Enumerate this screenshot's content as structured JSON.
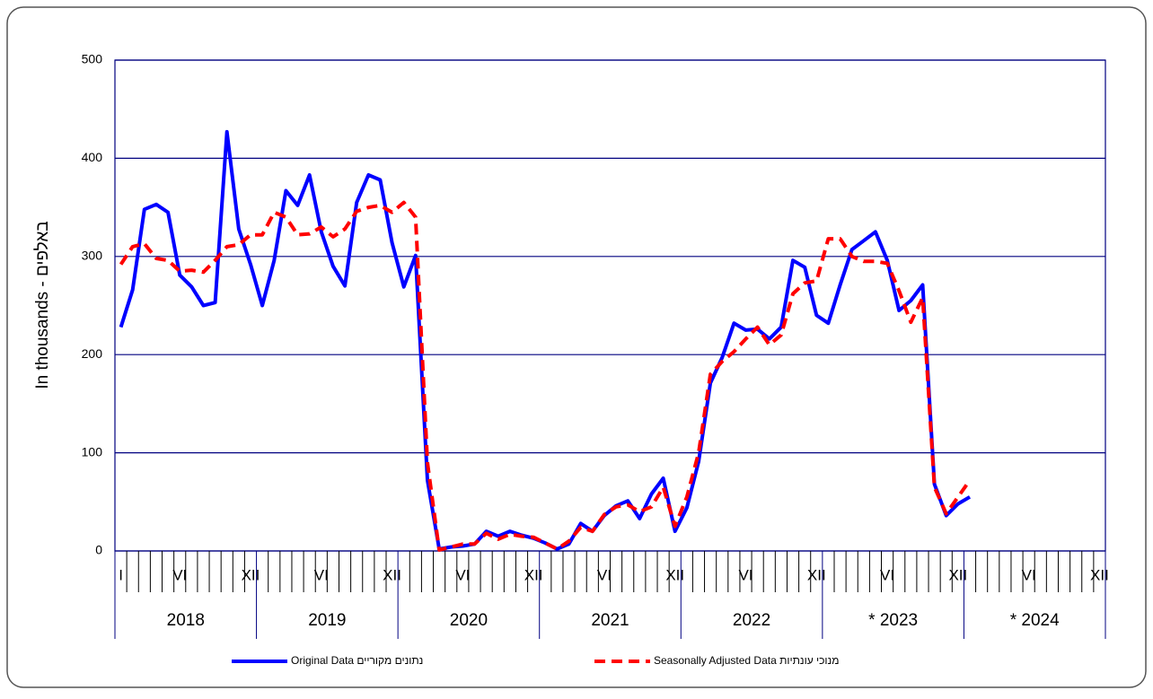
{
  "chart_data": {
    "type": "line",
    "y_label": "In thousands - באלפים",
    "categories": [
      "I",
      null,
      null,
      null,
      null,
      "VI",
      null,
      null,
      null,
      null,
      null,
      "XII",
      null,
      null,
      null,
      null,
      null,
      "VI",
      null,
      null,
      null,
      null,
      null,
      "XII",
      null,
      null,
      null,
      null,
      null,
      "VI",
      null,
      null,
      null,
      null,
      null,
      "XII",
      null,
      null,
      null,
      null,
      null,
      "VI",
      null,
      null,
      null,
      null,
      null,
      "XII",
      null,
      null,
      null,
      null,
      null,
      "VI",
      null,
      null,
      null,
      null,
      null,
      "XII",
      null,
      null,
      null,
      null,
      null,
      "VI",
      null,
      null,
      null,
      null,
      null,
      "XII",
      null,
      null,
      null,
      null,
      null,
      "VI",
      null,
      null,
      null,
      null,
      null,
      "XII"
    ],
    "years": [
      "2018",
      "2019",
      "2020",
      "2021",
      "2022",
      "* 2023",
      "* 2024"
    ],
    "series": [
      {
        "name": "Original Data   נתונים מקוריים",
        "color": "#0000ff",
        "dash": false,
        "values": [
          228,
          266,
          348,
          353,
          345,
          281,
          269,
          250,
          253,
          427,
          328,
          292,
          250,
          296,
          367,
          352,
          383,
          325,
          290,
          270,
          355,
          383,
          378,
          314,
          269,
          301,
          72,
          2,
          4,
          5,
          7,
          20,
          15,
          20,
          16,
          13,
          8,
          2,
          7,
          28,
          20,
          36,
          46,
          51,
          33,
          58,
          74,
          20,
          44,
          91,
          171,
          197,
          232,
          225,
          226,
          216,
          228,
          296,
          289,
          240,
          232,
          271,
          307,
          316,
          325,
          296,
          245,
          255,
          271,
          68,
          36,
          48,
          55,
          null,
          null,
          null,
          null,
          null,
          null,
          null,
          null,
          null,
          null,
          null
        ]
      },
      {
        "name": "Seasonally Adjusted Data מנוכי עונתיות",
        "color": "#ff0000",
        "dash": true,
        "values": [
          292,
          310,
          313,
          298,
          296,
          285,
          286,
          284,
          296,
          310,
          312,
          322,
          322,
          345,
          340,
          322,
          323,
          330,
          320,
          328,
          346,
          350,
          352,
          345,
          355,
          340,
          90,
          1,
          4,
          7,
          7,
          18,
          12,
          17,
          15,
          14,
          8,
          2,
          10,
          24,
          20,
          37,
          45,
          47,
          40,
          45,
          65,
          25,
          55,
          100,
          180,
          193,
          203,
          216,
          228,
          210,
          220,
          262,
          273,
          275,
          318,
          318,
          300,
          295,
          295,
          293,
          265,
          233,
          258,
          65,
          38,
          55,
          72,
          null,
          null,
          null,
          null,
          null,
          null,
          null,
          null,
          null,
          null,
          null
        ]
      }
    ],
    "ylim": [
      0,
      500
    ],
    "yticks": [
      0,
      100,
      200,
      300,
      400,
      500
    ],
    "grid": true
  }
}
